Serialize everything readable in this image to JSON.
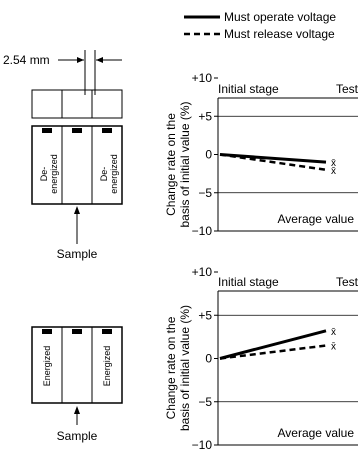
{
  "legend": {
    "operate_label": "Must operate voltage",
    "release_label": "Must release voltage"
  },
  "diagram": {
    "pitch_label": "2.54 mm",
    "sample_label": "Sample",
    "deenergized_label": "De-\nenergized",
    "energized_label": "Energized"
  },
  "chart_data": [
    {
      "type": "line",
      "x_categories": [
        "Initial stage",
        "Test"
      ],
      "ylabel": "Change rate on the basis of initial value (%)",
      "ylim": [
        -10,
        10
      ],
      "yticks": [
        "+10",
        "+5",
        "0",
        "−5",
        "−10"
      ],
      "annotation": "Average value",
      "grid": "horizontal at ±5",
      "series": [
        {
          "name": "Must operate voltage",
          "style": "solid",
          "values": [
            0,
            -1.0
          ],
          "mark": "x̄"
        },
        {
          "name": "Must release voltage",
          "style": "dashed",
          "values": [
            0,
            -2.0
          ],
          "mark": "x̄"
        }
      ]
    },
    {
      "type": "line",
      "x_categories": [
        "Initial stage",
        "Test"
      ],
      "ylabel": "Change rate on the basis of initial value (%)",
      "ylim": [
        -10,
        10
      ],
      "yticks": [
        "+10",
        "+5",
        "0",
        "−5",
        "−10"
      ],
      "annotation": "Average value",
      "grid": "horizontal at ±5",
      "series": [
        {
          "name": "Must operate voltage",
          "style": "solid",
          "values": [
            0,
            3.2
          ],
          "mark": "x̄"
        },
        {
          "name": "Must release voltage",
          "style": "dashed",
          "values": [
            0,
            1.5
          ],
          "mark": "x̄"
        }
      ]
    }
  ]
}
